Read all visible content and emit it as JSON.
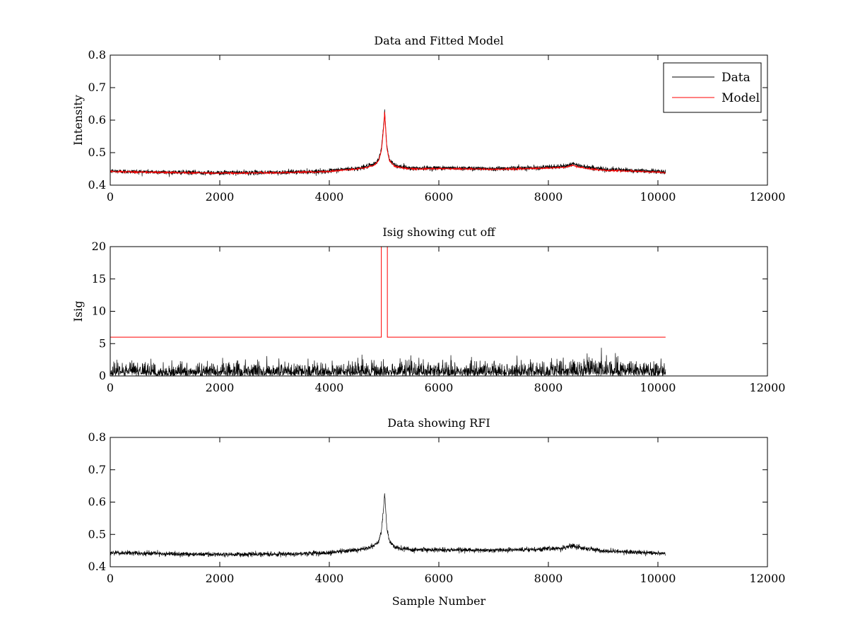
{
  "chart_data": [
    {
      "type": "line",
      "title": "Data and Fitted Model",
      "xlabel": "",
      "ylabel": "Intensity",
      "xlim": [
        0,
        12000
      ],
      "ylim": [
        0.4,
        0.8
      ],
      "xticks": [
        0,
        2000,
        4000,
        6000,
        8000,
        10000,
        12000
      ],
      "yticks": [
        0.4,
        0.5,
        0.6,
        0.7,
        0.8
      ],
      "xtick_labels": [
        "0",
        "2000",
        "4000",
        "6000",
        "8000",
        "10000",
        "12000"
      ],
      "ytick_labels": [
        "0.4",
        "0.5",
        "0.6",
        "0.7",
        "0.8"
      ],
      "grid": false,
      "legend": "top-right",
      "series": [
        {
          "name": "Data",
          "color": "#000000",
          "style": "noisy",
          "x": [
            0,
            1000,
            2000,
            3000,
            4000,
            4200,
            4500,
            4800,
            4900,
            4950,
            5000,
            5010,
            5050,
            5100,
            5200,
            5500,
            6000,
            7000,
            8000,
            8300,
            8450,
            8500,
            8700,
            9000,
            10000,
            10140
          ],
          "y": [
            0.443,
            0.44,
            0.438,
            0.439,
            0.443,
            0.448,
            0.451,
            0.462,
            0.478,
            0.51,
            0.6,
            0.633,
            0.52,
            0.478,
            0.46,
            0.452,
            0.453,
            0.451,
            0.455,
            0.458,
            0.466,
            0.462,
            0.456,
            0.449,
            0.442,
            0.44
          ]
        },
        {
          "name": "Model",
          "color": "#ff0000",
          "style": "smooth",
          "x": [
            0,
            1000,
            2000,
            3000,
            4000,
            4200,
            4500,
            4800,
            4900,
            4950,
            5000,
            5010,
            5050,
            5100,
            5200,
            5500,
            6000,
            7000,
            8000,
            8300,
            8450,
            8500,
            8700,
            9000,
            10000,
            10140
          ],
          "y": [
            0.442,
            0.439,
            0.437,
            0.438,
            0.442,
            0.446,
            0.449,
            0.459,
            0.474,
            0.505,
            0.59,
            0.625,
            0.515,
            0.474,
            0.457,
            0.45,
            0.451,
            0.449,
            0.452,
            0.455,
            0.461,
            0.458,
            0.451,
            0.446,
            0.44,
            0.438
          ]
        }
      ]
    },
    {
      "type": "line",
      "title": "Isig showing cut off",
      "xlabel": "",
      "ylabel": "Isig",
      "xlim": [
        0,
        12000
      ],
      "ylim": [
        0,
        20
      ],
      "xticks": [
        0,
        2000,
        4000,
        6000,
        8000,
        10000,
        12000
      ],
      "yticks": [
        0,
        5,
        10,
        15,
        20
      ],
      "xtick_labels": [
        "0",
        "2000",
        "4000",
        "6000",
        "8000",
        "10000",
        "12000"
      ],
      "ytick_labels": [
        "0",
        "5",
        "10",
        "15",
        "20"
      ],
      "grid": false,
      "legend": "none",
      "series": [
        {
          "name": "",
          "color": "#000000",
          "style": "abs-noise",
          "x": [
            0,
            2000,
            4000,
            5000,
            6000,
            8000,
            8500,
            9000,
            10140
          ],
          "y": [
            1.0,
            0.9,
            0.9,
            1.0,
            0.9,
            1.0,
            1.3,
            1.2,
            1.0
          ]
        },
        {
          "name": "",
          "color": "#ff0000",
          "style": "step",
          "x": [
            0,
            4950,
            4950,
            5060,
            5060,
            10140
          ],
          "y": [
            6,
            6,
            20,
            20,
            6,
            6
          ]
        }
      ]
    },
    {
      "type": "line",
      "title": "Data showing RFI",
      "xlabel": "Sample Number",
      "ylabel": "",
      "xlim": [
        0,
        12000
      ],
      "ylim": [
        0.4,
        0.8
      ],
      "xticks": [
        0,
        2000,
        4000,
        6000,
        8000,
        10000,
        12000
      ],
      "yticks": [
        0.4,
        0.5,
        0.6,
        0.7,
        0.8
      ],
      "xtick_labels": [
        "0",
        "2000",
        "4000",
        "6000",
        "8000",
        "10000",
        "12000"
      ],
      "ytick_labels": [
        "0.4",
        "0.5",
        "0.6",
        "0.7",
        "0.8"
      ],
      "grid": false,
      "legend": "none",
      "series": [
        {
          "name": "",
          "color": "#000000",
          "style": "noisy",
          "x": [
            0,
            1000,
            2000,
            3000,
            4000,
            4200,
            4500,
            4800,
            4900,
            4950,
            5000,
            5010,
            5050,
            5100,
            5200,
            5500,
            6000,
            7000,
            8000,
            8300,
            8450,
            8500,
            8700,
            9000,
            10000,
            10140
          ],
          "y": [
            0.443,
            0.44,
            0.438,
            0.439,
            0.443,
            0.448,
            0.451,
            0.462,
            0.478,
            0.51,
            0.6,
            0.633,
            0.52,
            0.478,
            0.46,
            0.452,
            0.453,
            0.451,
            0.455,
            0.458,
            0.466,
            0.462,
            0.456,
            0.449,
            0.442,
            0.44
          ]
        }
      ]
    }
  ]
}
